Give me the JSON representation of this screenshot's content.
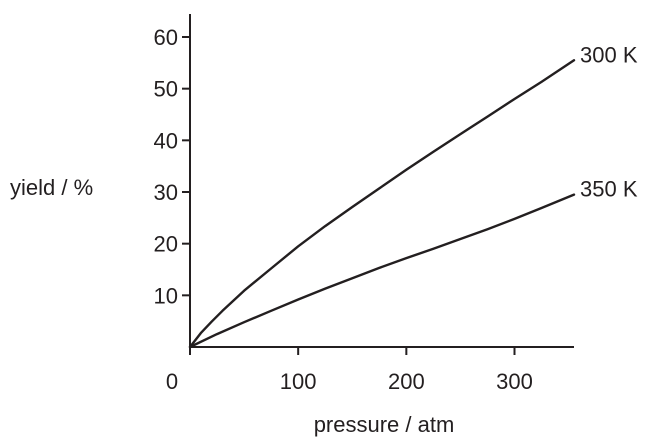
{
  "chart_data": {
    "type": "line",
    "xlabel": "pressure / atm",
    "ylabel": "yield / %",
    "xlim": [
      0,
      355
    ],
    "ylim": [
      0,
      60
    ],
    "xticks": [
      0,
      100,
      200,
      300
    ],
    "yticks": [
      10,
      20,
      30,
      40,
      50,
      60
    ],
    "grid": false,
    "series": [
      {
        "name": "300 K",
        "x": [
          0,
          10,
          20,
          30,
          50,
          75,
          100,
          125,
          150,
          175,
          200,
          225,
          250,
          275,
          300,
          325,
          355
        ],
        "y": [
          0,
          2.7,
          4.9,
          7.0,
          10.9,
          15.2,
          19.5,
          23.4,
          27.1,
          30.7,
          34.3,
          37.8,
          41.2,
          44.6,
          48.0,
          51.3,
          55.5
        ],
        "color": "#231f20"
      },
      {
        "name": "350 K",
        "x": [
          0,
          25,
          50,
          75,
          100,
          125,
          150,
          175,
          200,
          225,
          250,
          275,
          300,
          325,
          355
        ],
        "y": [
          0,
          2.5,
          4.8,
          7.0,
          9.2,
          11.3,
          13.3,
          15.3,
          17.2,
          19.0,
          20.9,
          22.8,
          24.8,
          26.9,
          29.5
        ],
        "color": "#231f20"
      }
    ]
  }
}
